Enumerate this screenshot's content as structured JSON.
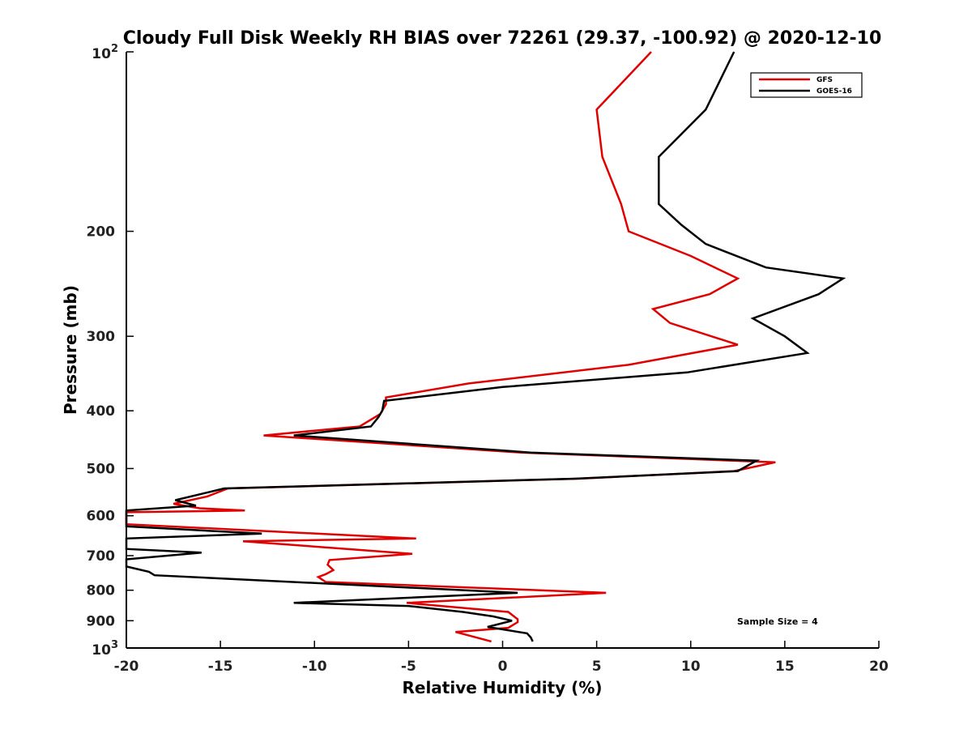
{
  "chart_data": {
    "type": "line",
    "title": "Cloudy Full Disk Weekly RH BIAS over 72261 (29.37, -100.92) @ 2020-12-10",
    "xlabel": "Relative Humidity (%)",
    "ylabel": "Pressure (mb)",
    "xlim": [
      -20,
      20
    ],
    "ylim": [
      100,
      1000
    ],
    "yscale": "log",
    "y_reversed": true,
    "x_ticks": [
      -20,
      -15,
      -10,
      -5,
      0,
      5,
      10,
      15,
      20
    ],
    "x_tick_labels": [
      "-20",
      "-15",
      "-10",
      "-5",
      "0",
      "5",
      "10",
      "15",
      "20"
    ],
    "y_ticks": [
      200,
      300,
      400,
      500,
      600,
      700,
      800,
      900
    ],
    "y_tick_labels": [
      "200",
      "300",
      "400",
      "500",
      "600",
      "700",
      "800",
      "900"
    ],
    "y_end_labels": [
      {
        "value": 100,
        "base": "10",
        "exp": "2"
      },
      {
        "value": 1000,
        "base": "10",
        "exp": "3"
      }
    ],
    "grid": false,
    "legend_position": "top-right",
    "series": [
      {
        "name": "GFS",
        "color": "#e00000",
        "x": [
          7.9,
          5.0,
          5.3,
          6.3,
          6.7,
          10.0,
          12.5,
          11.0,
          8.0,
          8.9,
          12.5,
          6.7,
          -1.8,
          -6.2,
          -6.2,
          -6.5,
          -7.6,
          -12.7,
          1.0,
          14.5,
          12.3,
          4.0,
          -14.6,
          -15.7,
          -17.5,
          -16.1,
          -13.7,
          -20.0,
          -20.0,
          -4.6,
          -13.8,
          -4.8,
          -9.2,
          -9.3,
          -9.0,
          -9.4,
          -9.8,
          -9.4,
          5.5,
          -5.1,
          0.3,
          0.8,
          0.8,
          0.3,
          -2.5,
          -0.6
        ],
        "y": [
          100,
          125,
          150,
          180,
          200,
          220,
          240,
          255,
          270,
          285,
          310,
          335,
          360,
          380,
          390,
          405,
          425,
          440,
          470,
          488,
          505,
          520,
          540,
          557,
          573,
          583,
          588,
          592,
          620,
          655,
          662,
          695,
          712,
          725,
          740,
          752,
          760,
          775,
          808,
          840,
          870,
          895,
          905,
          925,
          940,
          975
        ]
      },
      {
        "name": "GOES-16",
        "color": "#000000",
        "x": [
          12.3,
          10.8,
          8.3,
          8.3,
          9.5,
          10.8,
          14.0,
          18.1,
          16.8,
          13.3,
          15.0,
          16.2,
          9.8,
          0.0,
          -6.3,
          -6.4,
          -6.6,
          -7.0,
          -11.1,
          1.5,
          13.5,
          12.5,
          3.8,
          -14.8,
          -17.4,
          -16.3,
          -20.0,
          -20.0,
          -12.8,
          -20.0,
          -20.0,
          -16.0,
          -20.0,
          -20.0,
          -18.8,
          -18.5,
          0.8,
          -11.1,
          -5.0,
          -2.1,
          -0.5,
          0.5,
          -0.8,
          1.3,
          1.5,
          1.6
        ],
        "y": [
          100,
          125,
          150,
          180,
          195,
          210,
          230,
          240,
          255,
          280,
          300,
          320,
          345,
          365,
          385,
          400,
          410,
          425,
          440,
          470,
          485,
          505,
          520,
          540,
          565,
          577,
          588,
          625,
          643,
          655,
          682,
          692,
          710,
          730,
          745,
          755,
          808,
          840,
          850,
          870,
          885,
          900,
          922,
          945,
          960,
          975
        ]
      }
    ],
    "annotations": [
      {
        "text": "Sample Size = 4"
      }
    ]
  }
}
